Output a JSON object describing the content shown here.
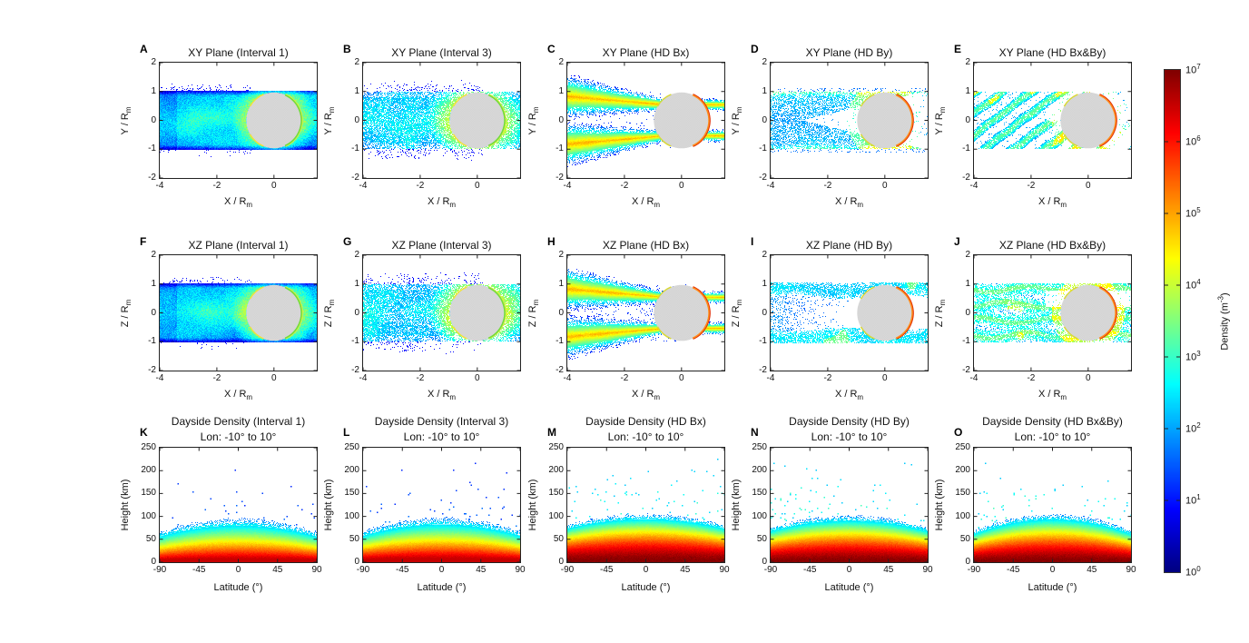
{
  "chart_data": {
    "figure_type": "multi-panel density simulation figure",
    "panels": [
      {
        "id": "A",
        "row": 1,
        "col": 1,
        "type": "density-map",
        "title": "XY Plane (Interval 1)",
        "xlabel": {
          "text": "X / R",
          "sub": "m"
        },
        "ylabel": {
          "text": "Y / R",
          "sub": "m"
        },
        "xlim": [
          -4,
          1.5
        ],
        "ylim": [
          -2,
          2
        ],
        "xticks": [
          -4,
          -2,
          0
        ],
        "yticks": [
          2,
          1,
          0,
          -1,
          -2
        ],
        "planet": {
          "cx": 0,
          "cy": 0,
          "r": 1
        },
        "palette": "interval",
        "style": "cloud",
        "stream": {
          "angle": -9,
          "strength": 0.55,
          "n": 10,
          "spacing": 0.46
        },
        "seed": 3
      },
      {
        "id": "B",
        "row": 1,
        "col": 2,
        "type": "density-map",
        "title": "XY Plane (Interval 3)",
        "xlabel": {
          "text": "X / R",
          "sub": "m"
        },
        "ylabel": {
          "text": "Y / R",
          "sub": "m"
        },
        "xlim": [
          -4,
          1.5
        ],
        "ylim": [
          -2,
          2
        ],
        "xticks": [
          -4,
          -2,
          0
        ],
        "yticks": [
          2,
          1,
          0,
          -1,
          -2
        ],
        "planet": {
          "cx": 0,
          "cy": 0,
          "r": 1
        },
        "palette": "interval",
        "style": "cloud_speckle",
        "stream": {
          "angle": 200,
          "strength": 0.7,
          "n": 12,
          "spacing": 0.48
        },
        "seed": 5
      },
      {
        "id": "C",
        "row": 1,
        "col": 3,
        "type": "density-map",
        "title": "XY Plane (HD Bx)",
        "xlabel": {
          "text": "X / R",
          "sub": "m"
        },
        "ylabel": {
          "text": "Y / R",
          "sub": "m"
        },
        "xlim": [
          -4,
          1.5
        ],
        "ylim": [
          -2,
          2
        ],
        "xticks": [
          -4,
          -2,
          0
        ],
        "yticks": [
          2,
          1,
          0,
          -1,
          -2
        ],
        "planet": {
          "cx": 0,
          "cy": 0,
          "r": 1
        },
        "palette": "hd",
        "style": "bands",
        "stream": {
          "angle": 0,
          "strength": 0.3,
          "n": 10,
          "spacing": 0.46
        },
        "seed": 7
      },
      {
        "id": "D",
        "row": 1,
        "col": 4,
        "type": "density-map",
        "title": "XY Plane (HD By)",
        "xlabel": {
          "text": "X / R",
          "sub": "m"
        },
        "ylabel": {
          "text": "Y / R",
          "sub": "m"
        },
        "xlim": [
          -4,
          1.5
        ],
        "ylim": [
          -2,
          2
        ],
        "xticks": [
          -4,
          -2,
          0
        ],
        "yticks": [
          2,
          1,
          0,
          -1,
          -2
        ],
        "planet": {
          "cx": 0,
          "cy": 0,
          "r": 1
        },
        "palette": "hd",
        "style": "speckle_fill",
        "stream": {
          "angle": 90,
          "strength": 0.5,
          "n": 11,
          "spacing": 0.5
        },
        "seed": 9
      },
      {
        "id": "E",
        "row": 1,
        "col": 5,
        "type": "density-map",
        "title": "XY Plane (HD Bx&By)",
        "xlabel": {
          "text": "X / R",
          "sub": "m"
        },
        "ylabel": {
          "text": "Y / R",
          "sub": "m"
        },
        "xlim": [
          -4,
          1.5
        ],
        "ylim": [
          -2,
          2
        ],
        "xticks": [
          -4,
          -2,
          0
        ],
        "yticks": [
          2,
          1,
          0,
          -1,
          -2
        ],
        "planet": {
          "cx": 0,
          "cy": 0,
          "r": 1
        },
        "palette": "hd",
        "style": "diag",
        "stream": {
          "angle": 38,
          "strength": 0.5,
          "n": 13,
          "spacing": 0.5
        },
        "seed": 11
      },
      {
        "id": "F",
        "row": 2,
        "col": 1,
        "type": "density-map",
        "title": "XZ Plane (Interval 1)",
        "xlabel": {
          "text": "X / R",
          "sub": "m"
        },
        "ylabel": {
          "text": "Z / R",
          "sub": "m"
        },
        "xlim": [
          -4,
          1.5
        ],
        "ylim": [
          -2,
          2
        ],
        "xticks": [
          -4,
          -2,
          0
        ],
        "yticks": [
          2,
          1,
          0,
          -1,
          -2
        ],
        "planet": {
          "cx": 0,
          "cy": 0,
          "r": 1
        },
        "palette": "interval",
        "style": "cloud",
        "stream": {
          "angle": 12,
          "strength": 0.6,
          "n": 10,
          "spacing": 0.46
        },
        "seed": 13
      },
      {
        "id": "G",
        "row": 2,
        "col": 2,
        "type": "density-map",
        "title": "XZ Plane (Interval 3)",
        "xlabel": {
          "text": "X / R",
          "sub": "m"
        },
        "ylabel": {
          "text": "Z / R",
          "sub": "m"
        },
        "xlim": [
          -4,
          1.5
        ],
        "ylim": [
          -2,
          2
        ],
        "xticks": [
          -4,
          -2,
          0
        ],
        "yticks": [
          2,
          1,
          0,
          -1,
          -2
        ],
        "planet": {
          "cx": 0,
          "cy": 0,
          "r": 1
        },
        "palette": "interval",
        "style": "cloud_speckle",
        "stream": {
          "angle": 186,
          "strength": 0.4,
          "n": 9,
          "spacing": 0.52
        },
        "seed": 15
      },
      {
        "id": "H",
        "row": 2,
        "col": 3,
        "type": "density-map",
        "title": "XZ Plane (HD Bx)",
        "xlabel": {
          "text": "X / R",
          "sub": "m"
        },
        "ylabel": {
          "text": "Z / R",
          "sub": "m"
        },
        "xlim": [
          -4,
          1.5
        ],
        "ylim": [
          -2,
          2
        ],
        "xticks": [
          -4,
          -2,
          0
        ],
        "yticks": [
          2,
          1,
          0,
          -1,
          -2
        ],
        "planet": {
          "cx": 0,
          "cy": 0,
          "r": 1
        },
        "palette": "hd",
        "style": "bands2",
        "stream": {
          "angle": 0,
          "strength": 0.3,
          "n": 10,
          "spacing": 0.46
        },
        "seed": 17
      },
      {
        "id": "I",
        "row": 2,
        "col": 4,
        "type": "density-map",
        "title": "XZ Plane (HD By)",
        "xlabel": {
          "text": "X / R",
          "sub": "m"
        },
        "ylabel": {
          "text": "Z / R",
          "sub": "m"
        },
        "xlim": [
          -4,
          1.5
        ],
        "ylim": [
          -2,
          2
        ],
        "xticks": [
          -4,
          -2,
          0
        ],
        "yticks": [
          2,
          1,
          0,
          -1,
          -2
        ],
        "planet": {
          "cx": 0,
          "cy": 0,
          "r": 1
        },
        "palette": "hd",
        "style": "edge_bands",
        "stream": null,
        "seed": 19
      },
      {
        "id": "J",
        "row": 2,
        "col": 5,
        "type": "density-map",
        "title": "XZ Plane (HD Bx&By)",
        "xlabel": {
          "text": "X / R",
          "sub": "m"
        },
        "ylabel": {
          "text": "Z / R",
          "sub": "m"
        },
        "xlim": [
          -4,
          1.5
        ],
        "ylim": [
          -2,
          2
        ],
        "xticks": [
          -4,
          -2,
          0
        ],
        "yticks": [
          2,
          1,
          0,
          -1,
          -2
        ],
        "planet": {
          "cx": 0,
          "cy": 0,
          "r": 1
        },
        "palette": "hd",
        "style": "wavy",
        "stream": {
          "angle": 2,
          "strength": -0.35,
          "n": 9,
          "spacing": 0.5
        },
        "seed": 21
      },
      {
        "id": "K",
        "row": 3,
        "col": 1,
        "type": "heatmap",
        "title": "Dayside Density (Interval 1)",
        "subtitle": "Lon: -10° to 10°",
        "xlabel": {
          "text": "Latitude (°)"
        },
        "ylabel": {
          "text": "Height (km)"
        },
        "xlim": [
          -90,
          90
        ],
        "ylim": [
          0,
          250
        ],
        "xticks": [
          -90,
          -45,
          0,
          45,
          90
        ],
        "yticks": [
          250,
          200,
          150,
          100,
          50,
          0
        ],
        "profile": {
          "H0": 95,
          "gamma": 1.0,
          "dome": 0.3,
          "tmax": 0.93,
          "scatter_density": 0.01,
          "scatter_tone": 0.16,
          "scatter_top": 245,
          "left_bias": 0
        },
        "seed": 31
      },
      {
        "id": "L",
        "row": 3,
        "col": 2,
        "type": "heatmap",
        "title": "Dayside Density (Interval 3)",
        "subtitle": "Lon: -10° to 10°",
        "xlabel": {
          "text": "Latitude (°)"
        },
        "ylabel": {
          "text": "Height (km)"
        },
        "xlim": [
          -90,
          90
        ],
        "ylim": [
          0,
          250
        ],
        "xticks": [
          -90,
          -45,
          0,
          45,
          90
        ],
        "yticks": [
          250,
          200,
          150,
          100,
          50,
          0
        ],
        "profile": {
          "H0": 97,
          "gamma": 1.05,
          "dome": 0.3,
          "tmax": 0.93,
          "scatter_density": 0.012,
          "scatter_tone": 0.16,
          "scatter_top": 245,
          "left_bias": 0.15
        },
        "seed": 33
      },
      {
        "id": "M",
        "row": 3,
        "col": 3,
        "type": "heatmap",
        "title": "Dayside Density (HD Bx)",
        "subtitle": "Lon: -10° to 10°",
        "xlabel": {
          "text": "Latitude (°)"
        },
        "ylabel": {
          "text": "Height (km)"
        },
        "xlim": [
          -90,
          90
        ],
        "ylim": [
          0,
          250
        ],
        "xticks": [
          -90,
          -45,
          0,
          45,
          90
        ],
        "yticks": [
          250,
          200,
          150,
          100,
          50,
          0
        ],
        "profile": {
          "H0": 105,
          "gamma": 1.6,
          "dome": 0.22,
          "tmax": 1.0,
          "scatter_density": 0.02,
          "scatter_tone": 0.32,
          "scatter_top": 245,
          "left_bias": 0
        },
        "seed": 35
      },
      {
        "id": "N",
        "row": 3,
        "col": 4,
        "type": "heatmap",
        "title": "Dayside Density (HD By)",
        "subtitle": "Lon: -10° to 10°",
        "xlabel": {
          "text": "Latitude (°)"
        },
        "ylabel": {
          "text": "Height (km)"
        },
        "xlim": [
          -90,
          90
        ],
        "ylim": [
          0,
          250
        ],
        "xticks": [
          -90,
          -45,
          0,
          45,
          90
        ],
        "yticks": [
          250,
          200,
          150,
          100,
          50,
          0
        ],
        "profile": {
          "H0": 102,
          "gamma": 1.5,
          "dome": 0.25,
          "tmax": 1.0,
          "scatter_density": 0.03,
          "scatter_tone": 0.32,
          "scatter_top": 240,
          "left_bias": 0.8
        },
        "seed": 37
      },
      {
        "id": "O",
        "row": 3,
        "col": 5,
        "type": "heatmap",
        "title": "Dayside Density (HD Bx&By)",
        "subtitle": "Lon: -10° to 10°",
        "xlabel": {
          "text": "Latitude (°)"
        },
        "ylabel": {
          "text": "Height (km)"
        },
        "xlim": [
          -90,
          90
        ],
        "ylim": [
          0,
          250
        ],
        "xticks": [
          -90,
          -45,
          0,
          45,
          90
        ],
        "yticks": [
          250,
          200,
          150,
          100,
          50,
          0
        ],
        "profile": {
          "H0": 105,
          "gamma": 1.5,
          "dome": 0.34,
          "tmax": 1.0,
          "scatter_density": 0.022,
          "scatter_tone": 0.32,
          "scatter_top": 235,
          "left_bias": 0.45
        },
        "seed": 39
      }
    ],
    "colorbar": {
      "label": {
        "prefix": "Density (m",
        "sup": "-3",
        "suffix": ")"
      },
      "colormap": "jet",
      "min_exp": 0,
      "max_exp": 7,
      "ticks": [
        {
          "m": "10",
          "e": "7"
        },
        {
          "m": "10",
          "e": "6"
        },
        {
          "m": "10",
          "e": "5"
        },
        {
          "m": "10",
          "e": "4"
        },
        {
          "m": "10",
          "e": "3"
        },
        {
          "m": "10",
          "e": "2"
        },
        {
          "m": "10",
          "e": "1"
        },
        {
          "m": "10",
          "e": "0"
        }
      ]
    },
    "palettes": {
      "interval": {
        "rim": "#71dd3a",
        "rim_outer": "#d6ee4c",
        "contact": "#f0e23a"
      },
      "hd": {
        "rim": "#ff8c1a",
        "rim_outer": "#e03008",
        "contact": "#d8d838"
      },
      "planet_fill": "#d8d8d8",
      "stream_color": "#606060"
    }
  }
}
